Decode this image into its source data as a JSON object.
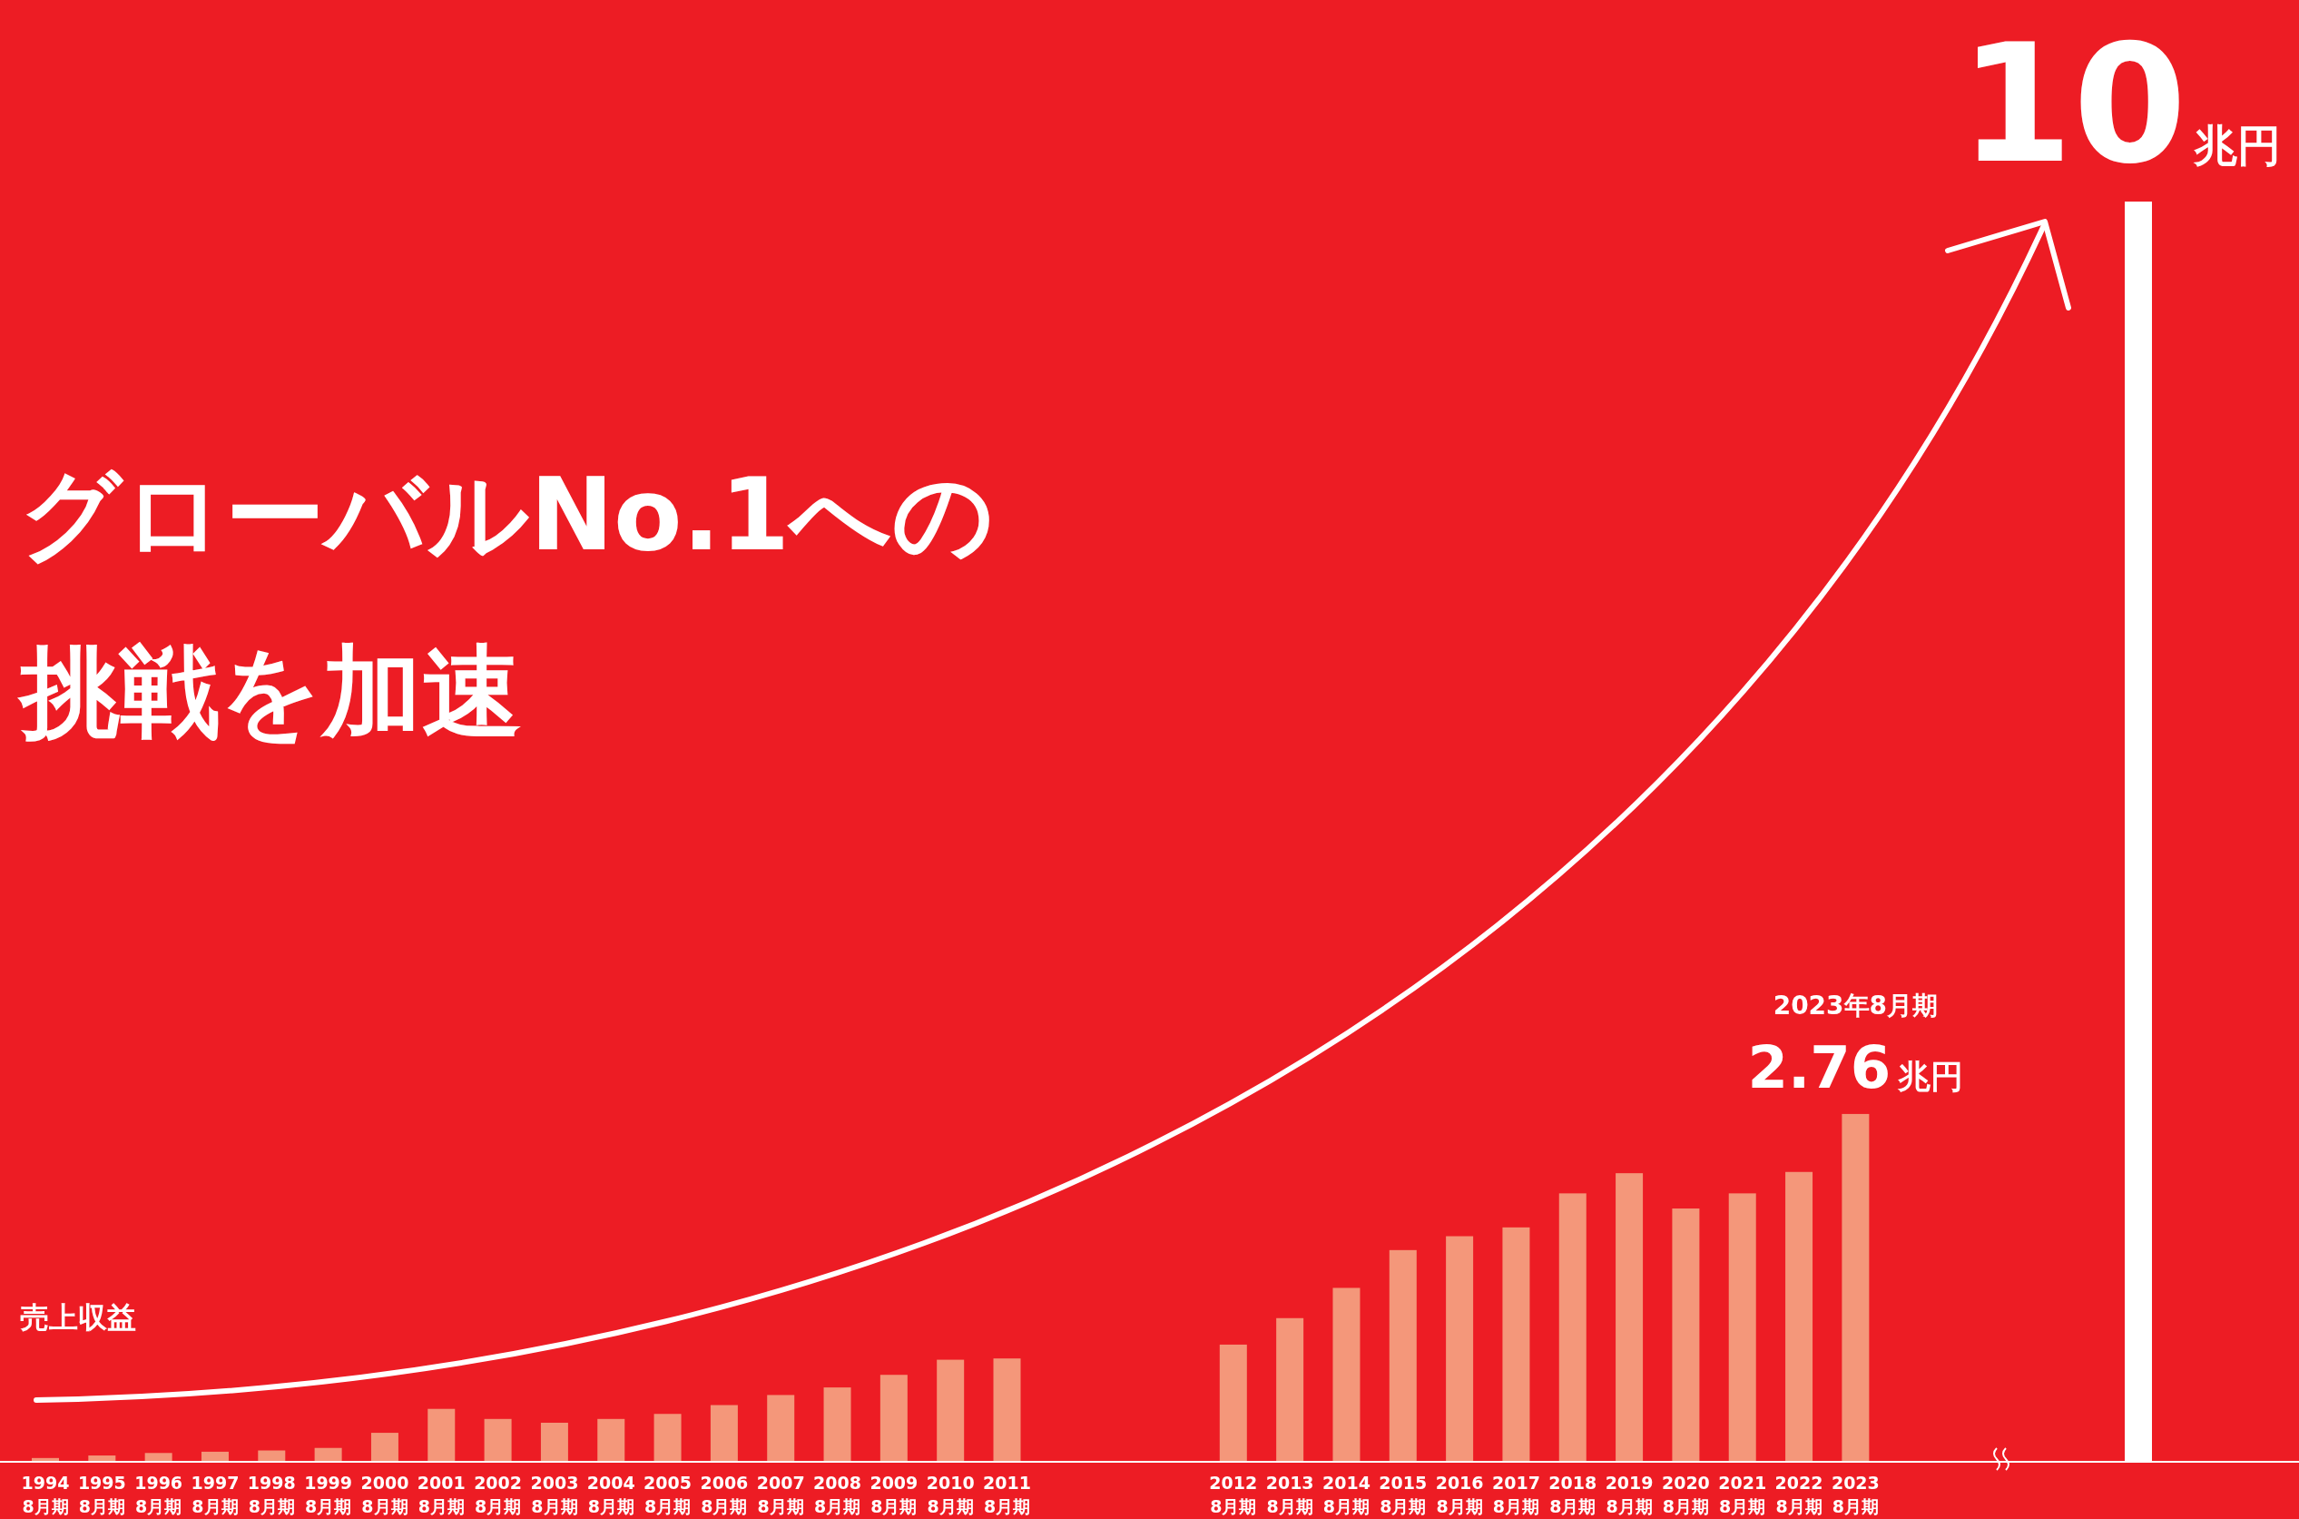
{
  "chart_data": {
    "type": "bar",
    "title": "グローバルNo.1への挑戦を加速",
    "ylabel": "売上収益",
    "categories": [
      "1994\n8月期",
      "1995\n8月期",
      "1996\n8月期",
      "1997\n8月期",
      "1998\n8月期",
      "1999\n8月期",
      "2000\n8月期",
      "2001\n8月期",
      "2002\n8月期",
      "2003\n8月期",
      "2004\n8月期",
      "2005\n8月期",
      "2006\n8月期",
      "2007\n8月期",
      "2008\n8月期",
      "2009\n8月期",
      "2010\n8月期",
      "2011\n8月期",
      null,
      null,
      null,
      "2012\n8月期",
      "2013\n8月期",
      "2014\n8月期",
      "2015\n8月期",
      "2016\n8月期",
      "2017\n8月期",
      "2018\n8月期",
      "2019\n8月期",
      "2020\n8月期",
      "2021\n8月期",
      "2022\n8月期",
      "2023\n8月期",
      null,
      null,
      null,
      null,
      null
    ],
    "values": [
      0.03,
      0.05,
      0.07,
      0.08,
      0.09,
      0.11,
      0.23,
      0.42,
      0.34,
      0.31,
      0.34,
      0.38,
      0.45,
      0.53,
      0.59,
      0.69,
      0.81,
      0.82,
      null,
      null,
      null,
      0.93,
      1.14,
      1.38,
      1.68,
      1.79,
      1.86,
      2.13,
      2.29,
      2.01,
      2.13,
      2.3,
      2.76,
      null,
      null,
      null,
      null,
      10
    ],
    "colors": [
      "#f4977a",
      "#f4977a",
      "#f4977a",
      "#f4977a",
      "#f4977a",
      "#f4977a",
      "#f4977a",
      "#f4977a",
      "#f4977a",
      "#f4977a",
      "#f4977a",
      "#f4977a",
      "#f4977a",
      "#f4977a",
      "#f4977a",
      "#f4977a",
      "#f4977a",
      "#f4977a",
      null,
      null,
      null,
      "#f4977a",
      "#f4977a",
      "#f4977a",
      "#f4977a",
      "#f4977a",
      "#f4977a",
      "#f4977a",
      "#f4977a",
      "#f4977a",
      "#f4977a",
      "#f4977a",
      "#f4977a",
      null,
      null,
      null,
      null,
      "#ffffff"
    ],
    "value_labels": [
      null,
      null,
      null,
      null,
      null,
      null,
      null,
      null,
      null,
      null,
      null,
      null,
      null,
      null,
      null,
      null,
      null,
      null,
      null,
      null,
      null,
      null,
      null,
      null,
      null,
      null,
      null,
      null,
      null,
      null,
      null,
      null,
      "2.76兆円",
      null,
      null,
      null,
      null,
      "10兆円"
    ],
    "annotations": [
      "2023年8月期"
    ]
  }
}
